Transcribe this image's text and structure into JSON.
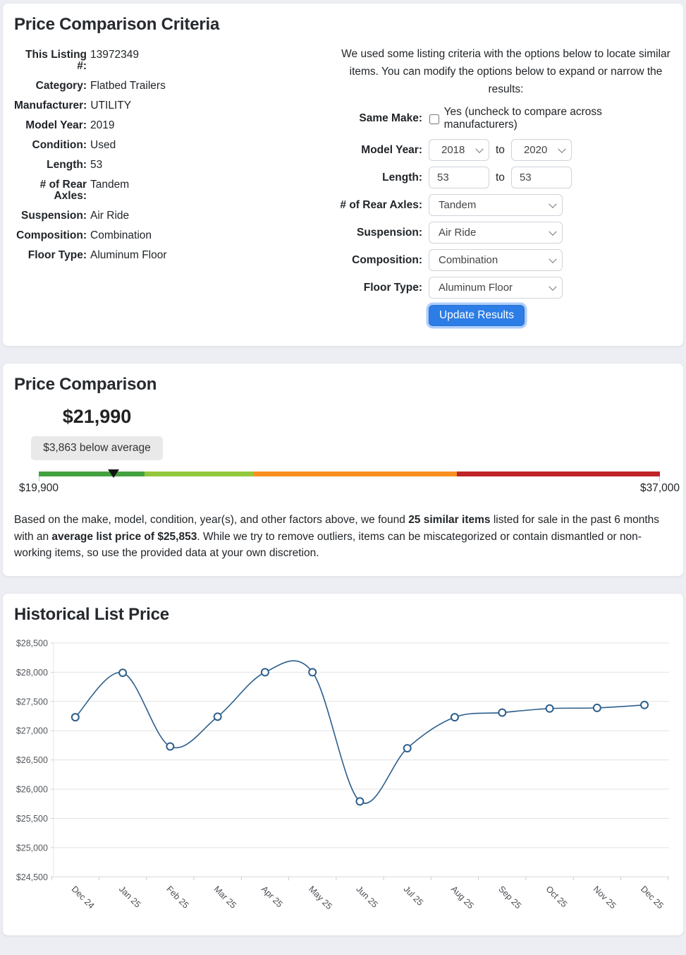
{
  "criteria_card": {
    "title": "Price Comparison Criteria",
    "listing": [
      {
        "label": "This Listing #:",
        "value": "13972349"
      },
      {
        "label": "Category:",
        "value": "Flatbed Trailers"
      },
      {
        "label": "Manufacturer:",
        "value": "UTILITY"
      },
      {
        "label": "Model Year:",
        "value": "2019"
      },
      {
        "label": "Condition:",
        "value": "Used"
      },
      {
        "label": "Length:",
        "value": "53"
      },
      {
        "label": "# of Rear Axles:",
        "value": "Tandem"
      },
      {
        "label": "Suspension:",
        "value": "Air Ride"
      },
      {
        "label": "Composition:",
        "value": "Combination"
      },
      {
        "label": "Floor Type:",
        "value": "Aluminum Floor"
      }
    ],
    "intro_line1": "We used some listing criteria with the options below to locate similar",
    "intro_line2": "items. You can modify the options below to expand or narrow the results:",
    "same_make": {
      "label": "Same Make:",
      "checked": false,
      "text": "Yes (uncheck to compare across manufacturers)"
    },
    "model_year": {
      "label": "Model Year:",
      "from": "2018",
      "to_word": "to",
      "to": "2020"
    },
    "length": {
      "label": "Length:",
      "from": "53",
      "to_word": "to",
      "to": "53"
    },
    "selects": [
      {
        "name": "rear-axles-select",
        "label": "# of Rear Axles:",
        "value": "Tandem"
      },
      {
        "name": "suspension-select",
        "label": "Suspension:",
        "value": "Air Ride"
      },
      {
        "name": "composition-select",
        "label": "Composition:",
        "value": "Combination"
      },
      {
        "name": "floor-type-select",
        "label": "Floor Type:",
        "value": "Aluminum Floor"
      }
    ],
    "update_button": "Update Results"
  },
  "comparison_card": {
    "title": "Price Comparison",
    "price": "$21,990",
    "badge": "$3,863 below average",
    "min": "$19,900",
    "max": "$37,000",
    "marker_pct": 12,
    "bar_segments": [
      {
        "color": "#44a13f",
        "pct": 17.0
      },
      {
        "color": "#94c83c",
        "pct": 17.6
      },
      {
        "color": "#f78f20",
        "pct": 32.7
      },
      {
        "color": "#bf2429",
        "pct": 32.7
      }
    ],
    "note": {
      "p1": "Based on the make, model, condition, year(s), and other factors above, we found ",
      "b1": "25 similar items",
      "p2": " listed for sale in the past 6 months with an ",
      "b2": "average list price of $25,853",
      "p3": ". While we try to remove outliers, items can be miscategorized or contain dismantled or non-working items, so use the provided data at your own discretion."
    }
  },
  "history_card": {
    "title": "Historical List Price"
  },
  "chart_data": {
    "type": "line",
    "title": "Historical List Price",
    "categories": [
      "Dec 24",
      "Jan 25",
      "Feb 25",
      "Mar 25",
      "Apr 25",
      "May 25",
      "Jun 25",
      "Jul 25",
      "Aug 25",
      "Sep 25",
      "Oct 25",
      "Nov 25",
      "Dec 25"
    ],
    "values": [
      27230,
      27990,
      26730,
      27240,
      28000,
      28000,
      25790,
      26700,
      27230,
      27310,
      27380,
      27390,
      27440
    ],
    "xlabel": "",
    "ylabel": "",
    "ylim": [
      24500,
      28500
    ],
    "ytick_step": 500,
    "ytick_prefix": "$",
    "grid": true,
    "legend": false,
    "line_color": "#2b5e8c",
    "marker": "open-circle",
    "x_label_rotation": 45
  },
  "colors": {
    "button_blue": "#2c7de6",
    "badge_bg": "#e9e9e9",
    "grid_gray": "#e3e3e3",
    "tick_gray": "#c9cdd2"
  }
}
